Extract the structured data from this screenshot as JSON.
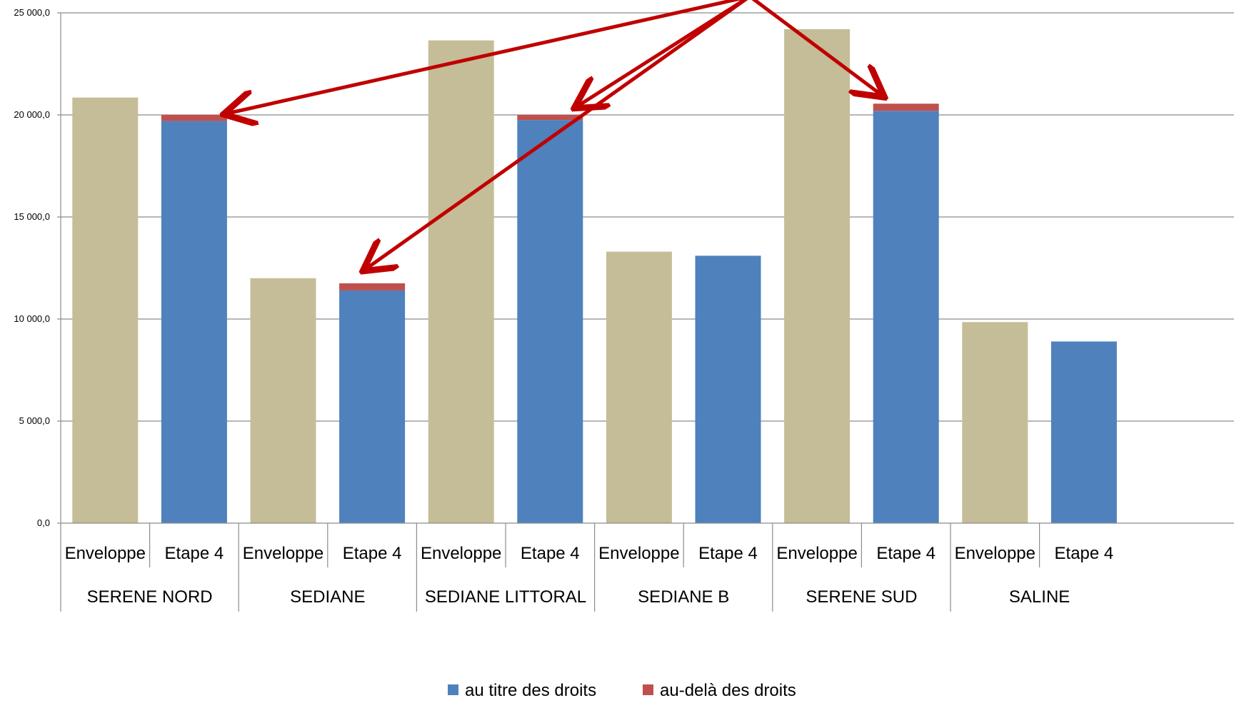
{
  "chart_data": {
    "type": "bar",
    "title": "",
    "xlabel": "",
    "ylabel": "",
    "ylim": [
      0,
      25000
    ],
    "yticks": [
      0,
      5000,
      10000,
      15000,
      20000,
      25000
    ],
    "ytick_labels": [
      "0,0",
      "5 000,0",
      "10 000,0",
      "15 000,0",
      "20 000,0",
      "25 000,0"
    ],
    "grid": true,
    "legend_position": "bottom",
    "groups": [
      {
        "name": "SERENE NORD",
        "bars": [
          {
            "label": "Enveloppe",
            "kind": "enveloppe",
            "value": 20850
          },
          {
            "label": "Etape 4",
            "kind": "etape",
            "value": 19700,
            "extra": 300
          }
        ]
      },
      {
        "name": "SEDIANE",
        "bars": [
          {
            "label": "Enveloppe",
            "kind": "enveloppe",
            "value": 12000
          },
          {
            "label": "Etape 4",
            "kind": "etape",
            "value": 11400,
            "extra": 350
          }
        ]
      },
      {
        "name": "SEDIANE LITTORAL",
        "bars": [
          {
            "label": "Enveloppe",
            "kind": "enveloppe",
            "value": 23650
          },
          {
            "label": "Etape 4",
            "kind": "etape",
            "value": 19750,
            "extra": 250
          }
        ]
      },
      {
        "name": "SEDIANE B",
        "bars": [
          {
            "label": "Enveloppe",
            "kind": "enveloppe",
            "value": 13300
          },
          {
            "label": "Etape 4",
            "kind": "etape",
            "value": 13100,
            "extra": 0
          }
        ]
      },
      {
        "name": "SERENE SUD",
        "bars": [
          {
            "label": "Enveloppe",
            "kind": "enveloppe",
            "value": 24200
          },
          {
            "label": "Etape 4",
            "kind": "etape",
            "value": 20200,
            "extra": 350
          }
        ]
      },
      {
        "name": "SALINE",
        "bars": [
          {
            "label": "Enveloppe",
            "kind": "enveloppe",
            "value": 9850
          },
          {
            "label": "Etape 4",
            "kind": "etape",
            "value": 8900,
            "extra": 0
          }
        ]
      }
    ],
    "series": [
      {
        "name": "au titre des droits",
        "color": "#4f81bd"
      },
      {
        "name": "au-delà des droits",
        "color": "#c0504d"
      }
    ],
    "enveloppe_color": "#c4bd97",
    "annotation_color": "#c00000"
  }
}
